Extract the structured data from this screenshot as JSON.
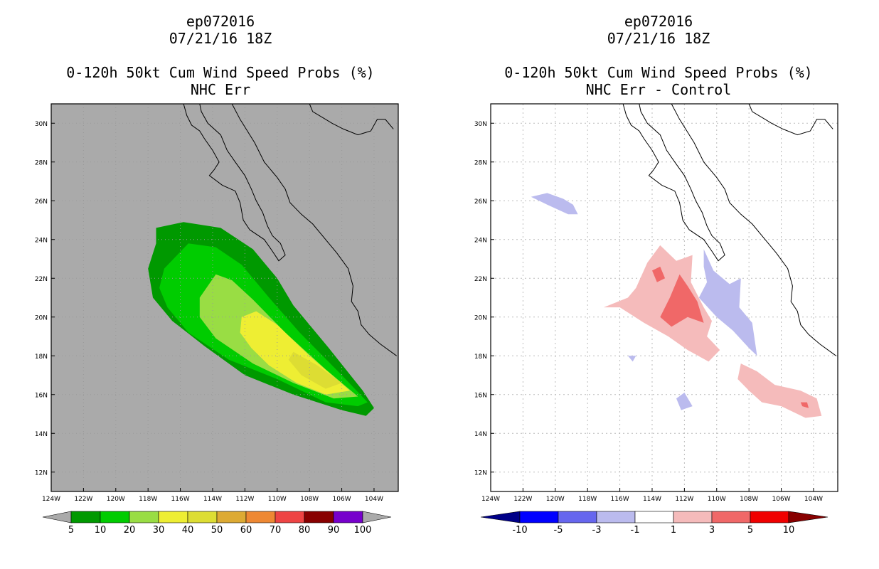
{
  "chart_data": [
    {
      "type": "contour",
      "title_lines": [
        "ep072016",
        "07/21/16 18Z",
        "0-120h 50kt Cum Wind Speed Probs (%)",
        "NHC Err"
      ],
      "x_ticks": [
        "124W",
        "122W",
        "120W",
        "118W",
        "116W",
        "114W",
        "112W",
        "110W",
        "108W",
        "106W",
        "104W"
      ],
      "y_ticks": [
        "30N",
        "28N",
        "26N",
        "24N",
        "22N",
        "20N",
        "18N",
        "16N",
        "14N",
        "12N"
      ],
      "xlim_lon_east": [
        -124,
        -102.5
      ],
      "ylim_lat": [
        11,
        31
      ],
      "background_color": "#aaaaaa",
      "colorbar": {
        "labels": [
          "5",
          "10",
          "20",
          "30",
          "40",
          "50",
          "60",
          "70",
          "80",
          "90",
          "100"
        ],
        "colors": [
          "#009900",
          "#00cc00",
          "#99dd44",
          "#eeee33",
          "#dddd33",
          "#ddaa33",
          "#ee8833",
          "#ee4444",
          "#880000",
          "#7700cc"
        ],
        "end_color": "#aaaaaa"
      },
      "contour_levels": [
        {
          "level": 5,
          "color": "#009900",
          "points": [
            [
              -117.5,
              23.8
            ],
            [
              -117.5,
              24.6
            ],
            [
              -115.8,
              24.9
            ],
            [
              -113.5,
              24.6
            ],
            [
              -111.5,
              23.5
            ],
            [
              -110.0,
              22.0
            ],
            [
              -109.0,
              20.6
            ],
            [
              -106.8,
              18.4
            ],
            [
              -104.7,
              16.2
            ],
            [
              -104.0,
              15.3
            ],
            [
              -104.5,
              14.9
            ],
            [
              -106.0,
              15.2
            ],
            [
              -109.0,
              16.0
            ],
            [
              -112.0,
              17.0
            ],
            [
              -114.5,
              18.5
            ],
            [
              -116.5,
              19.8
            ],
            [
              -117.7,
              21.0
            ],
            [
              -118.0,
              22.5
            ]
          ]
        },
        {
          "level": 10,
          "color": "#00cc00",
          "points": [
            [
              -117.3,
              21.5
            ],
            [
              -117.0,
              22.5
            ],
            [
              -115.5,
              23.8
            ],
            [
              -113.8,
              23.6
            ],
            [
              -112.2,
              22.7
            ],
            [
              -110.5,
              21.0
            ],
            [
              -108.6,
              19.2
            ],
            [
              -106.0,
              17.0
            ],
            [
              -104.4,
              15.6
            ],
            [
              -105.0,
              15.4
            ],
            [
              -107.0,
              15.6
            ],
            [
              -110.0,
              16.8
            ],
            [
              -113.0,
              17.8
            ],
            [
              -115.5,
              19.2
            ],
            [
              -116.8,
              20.5
            ]
          ]
        },
        {
          "level": 20,
          "color": "#99dd44",
          "points": [
            [
              -114.8,
              20.0
            ],
            [
              -114.8,
              21.0
            ],
            [
              -113.8,
              22.2
            ],
            [
              -112.8,
              21.9
            ],
            [
              -111.5,
              20.9
            ],
            [
              -109.5,
              19.2
            ],
            [
              -107.0,
              17.3
            ],
            [
              -105.0,
              15.9
            ],
            [
              -106.5,
              15.8
            ],
            [
              -109.0,
              16.6
            ],
            [
              -111.5,
              17.6
            ],
            [
              -113.8,
              18.9
            ]
          ]
        },
        {
          "level": 30,
          "color": "#eeee33",
          "points": [
            [
              -112.3,
              19.2
            ],
            [
              -112.2,
              20.0
            ],
            [
              -111.3,
              20.3
            ],
            [
              -110.0,
              19.6
            ],
            [
              -108.0,
              18.0
            ],
            [
              -105.5,
              16.2
            ],
            [
              -107.0,
              16.0
            ],
            [
              -108.8,
              16.6
            ],
            [
              -110.5,
              17.5
            ],
            [
              -111.6,
              18.4
            ]
          ]
        },
        {
          "level": 40,
          "color": "#dddd33",
          "points": [
            [
              -109.0,
              18.2
            ],
            [
              -107.5,
              17.5
            ],
            [
              -106.0,
              16.6
            ],
            [
              -107.0,
              16.3
            ],
            [
              -108.5,
              17.0
            ],
            [
              -109.3,
              17.8
            ]
          ]
        }
      ]
    },
    {
      "type": "contour",
      "title_lines": [
        "ep072016",
        "07/21/16 18Z",
        "0-120h 50kt Cum Wind Speed Probs (%)",
        "NHC Err - Control"
      ],
      "x_ticks": [
        "124W",
        "122W",
        "120W",
        "118W",
        "116W",
        "114W",
        "112W",
        "110W",
        "108W",
        "106W",
        "104W"
      ],
      "y_ticks": [
        "30N",
        "28N",
        "26N",
        "24N",
        "22N",
        "20N",
        "18N",
        "16N",
        "14N",
        "12N"
      ],
      "xlim_lon_east": [
        -124,
        -102.5
      ],
      "ylim_lat": [
        11,
        31
      ],
      "background_color": "#ffffff",
      "grid": true,
      "colorbar": {
        "labels": [
          "-10",
          "-5",
          "-3",
          "-1",
          "1",
          "3",
          "5",
          "10"
        ],
        "colors": [
          "#0000ff",
          "#6666ee",
          "#bbbbee",
          "#ffffff",
          "#f5bbbb",
          "#f06868",
          "#f00000"
        ],
        "left_end_color": "#000088",
        "right_end_color": "#880000"
      },
      "contour_levels": [
        {
          "level": 1,
          "color": "#f5bbbb",
          "points": [
            [
              -115.0,
              21.5
            ],
            [
              -114.3,
              22.8
            ],
            [
              -113.5,
              23.7
            ],
            [
              -112.5,
              22.9
            ],
            [
              -111.5,
              23.2
            ],
            [
              -111.6,
              21.8
            ],
            [
              -110.8,
              20.5
            ],
            [
              -110.3,
              19.8
            ],
            [
              -110.6,
              19.0
            ],
            [
              -109.8,
              18.3
            ],
            [
              -110.5,
              17.7
            ],
            [
              -111.8,
              18.3
            ],
            [
              -113.0,
              19.0
            ],
            [
              -114.5,
              19.7
            ],
            [
              -116.0,
              20.5
            ],
            [
              -117.0,
              20.5
            ],
            [
              -115.5,
              21.0
            ]
          ]
        },
        {
          "level": 1,
          "color": "#f5bbbb",
          "points": [
            [
              -108.5,
              17.6
            ],
            [
              -107.5,
              17.2
            ],
            [
              -106.4,
              16.5
            ],
            [
              -104.8,
              16.2
            ],
            [
              -103.8,
              15.8
            ],
            [
              -103.5,
              14.9
            ],
            [
              -104.5,
              14.8
            ],
            [
              -106.0,
              15.4
            ],
            [
              -107.2,
              15.6
            ],
            [
              -108.0,
              16.2
            ],
            [
              -108.7,
              16.8
            ]
          ]
        },
        {
          "level": 3,
          "color": "#f06868",
          "points": [
            [
              -113.5,
              20.0
            ],
            [
              -112.9,
              21.0
            ],
            [
              -112.3,
              22.2
            ],
            [
              -111.8,
              21.6
            ],
            [
              -111.2,
              20.8
            ],
            [
              -110.8,
              19.7
            ],
            [
              -111.8,
              20.0
            ],
            [
              -112.8,
              19.5
            ]
          ]
        },
        {
          "level": 3,
          "color": "#f06868",
          "points": [
            [
              -114.0,
              22.4
            ],
            [
              -113.5,
              22.6
            ],
            [
              -113.2,
              22.0
            ],
            [
              -113.7,
              21.8
            ]
          ]
        },
        {
          "level": 3,
          "color": "#f06868",
          "points": [
            [
              -104.8,
              15.6
            ],
            [
              -104.4,
              15.6
            ],
            [
              -104.3,
              15.3
            ],
            [
              -104.7,
              15.4
            ]
          ]
        },
        {
          "level": -1,
          "color": "#bbbbee",
          "points": [
            [
              -121.5,
              26.2
            ],
            [
              -120.5,
              26.4
            ],
            [
              -119.5,
              26.1
            ],
            [
              -118.9,
              25.8
            ],
            [
              -118.6,
              25.3
            ],
            [
              -119.2,
              25.3
            ],
            [
              -120.5,
              25.8
            ]
          ]
        },
        {
          "level": -1,
          "color": "#bbbbee",
          "points": [
            [
              -110.8,
              23.5
            ],
            [
              -110.2,
              22.4
            ],
            [
              -109.2,
              21.7
            ],
            [
              -108.5,
              22.0
            ],
            [
              -108.6,
              20.5
            ],
            [
              -107.8,
              19.7
            ],
            [
              -107.5,
              18.0
            ],
            [
              -108.0,
              18.4
            ],
            [
              -109.0,
              19.3
            ],
            [
              -110.0,
              20.0
            ],
            [
              -111.1,
              21.0
            ],
            [
              -110.6,
              21.8
            ],
            [
              -110.8,
              22.6
            ]
          ]
        },
        {
          "level": -1,
          "color": "#bbbbee",
          "points": [
            [
              -112.5,
              15.8
            ],
            [
              -112.0,
              16.1
            ],
            [
              -111.5,
              15.4
            ],
            [
              -112.2,
              15.2
            ]
          ]
        },
        {
          "level": -1,
          "color": "#bbbbee",
          "points": [
            [
              -115.5,
              18.0
            ],
            [
              -115.0,
              18.0
            ],
            [
              -115.2,
              17.7
            ]
          ]
        }
      ]
    }
  ]
}
